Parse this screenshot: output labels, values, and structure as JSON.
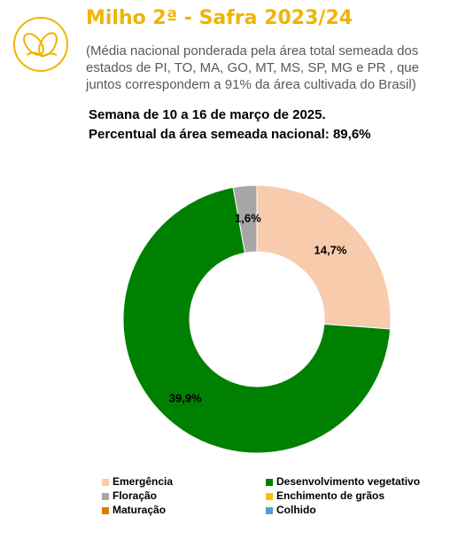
{
  "chart_data": {
    "type": "donut",
    "title": "Milho 2ª - Safra 2023/24",
    "subtitle": "(Média nacional ponderada pela área total semeada dos estados de PI, TO, MA, GO, MT, MS, SP, MG e PR , que juntos correspondem a 91% da área cultivada do Brasil)",
    "notes": [
      "Semana de 10 a 16 de março de 2025.",
      "Percentual da área semeada nacional: 89,6%"
    ],
    "categories": [
      "Emergência",
      "Desenvolvimento vegetativo",
      "Floração",
      "Enchimento de grãos",
      "Maturação",
      "Colhido"
    ],
    "values": [
      14.7,
      39.9,
      1.6,
      0,
      0,
      0
    ],
    "value_labels": [
      "14,7%",
      "39,9%",
      "1,6%",
      null,
      null,
      null
    ],
    "colors": [
      "#f8cbad",
      "#008000",
      "#a6a6a6",
      "#ffc000",
      "#e07b00",
      "#5b9bd5"
    ]
  }
}
